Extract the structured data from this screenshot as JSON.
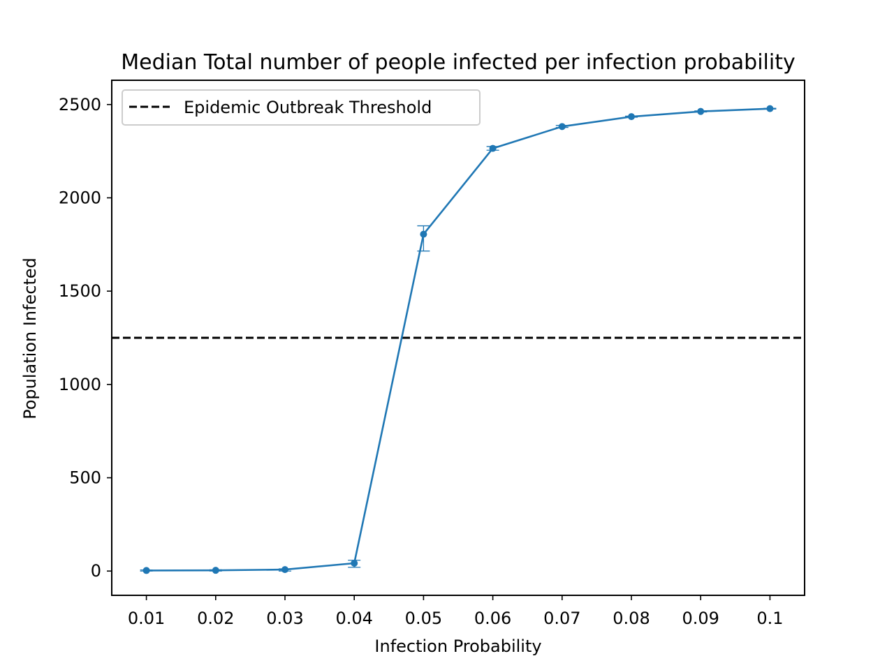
{
  "chart_data": {
    "type": "line",
    "title": "Median Total number of people infected per infection probability",
    "xlabel": "Infection Probability",
    "ylabel": "Population Infected",
    "xlim": [
      0.005,
      0.105
    ],
    "ylim": [
      -130,
      2630
    ],
    "x_ticks": [
      0.01,
      0.02,
      0.03,
      0.04,
      0.05,
      0.06,
      0.07,
      0.08,
      0.09,
      0.1
    ],
    "x_tick_labels": [
      "0.01",
      "0.02",
      "0.03",
      "0.04",
      "0.05",
      "0.06",
      "0.07",
      "0.08",
      "0.09",
      "0.1"
    ],
    "y_ticks": [
      0,
      500,
      1000,
      1500,
      2000,
      2500
    ],
    "y_tick_labels": [
      "0",
      "500",
      "1000",
      "1500",
      "2000",
      "2500"
    ],
    "grid": false,
    "legend_position": "upper-left",
    "series": [
      {
        "x": [
          0.01,
          0.02,
          0.03,
          0.04,
          0.05,
          0.06,
          0.07,
          0.08,
          0.09,
          0.1
        ],
        "values": [
          3,
          4,
          8,
          42,
          1805,
          2265,
          2382,
          2435,
          2463,
          2478
        ],
        "error_low": [
          0,
          0,
          0,
          20,
          1715,
          2255,
          2377,
          2432,
          2460,
          2476
        ],
        "error_high": [
          6,
          7,
          12,
          58,
          1850,
          2275,
          2388,
          2438,
          2466,
          2480
        ],
        "color": "#1f77b4",
        "marker": "circle"
      }
    ],
    "reference_lines": [
      {
        "name": "Epidemic Outbreak Threshold",
        "orientation": "horizontal",
        "y": 1250,
        "color": "#000000",
        "style": "dashed"
      }
    ]
  }
}
